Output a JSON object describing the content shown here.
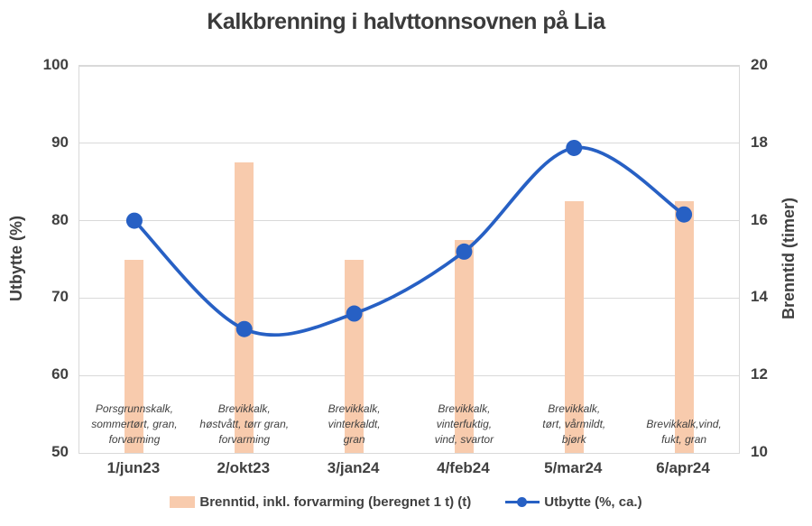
{
  "chart_data": {
    "type": "combo",
    "title": "Kalkbrenning i halvttonnsovnen på Lia",
    "categories": [
      "1/jun23",
      "2/okt23",
      "3/jan24",
      "4/feb24",
      "5/mar24",
      "6/apr24"
    ],
    "series": [
      {
        "name": "Brenntid, inkl. forvarming (beregnet 1 t) (t)",
        "type": "bar",
        "axis": "right",
        "values": [
          15,
          17.5,
          15,
          15.5,
          16.5,
          16.5
        ],
        "color": "#F8CBAD"
      },
      {
        "name": "Utbytte (%, ca.)",
        "type": "line",
        "axis": "left",
        "smooth": true,
        "values": [
          80,
          66,
          68,
          76,
          89.4,
          80.8
        ],
        "color": "#2760C4"
      }
    ],
    "annotations": [
      "Porsgrunnskalk,\nsommertørt, gran,\nforvarming",
      "Brevikkalk,\nhøstvått, tørr gran,\nforvarming",
      "Brevikkalk,\nvinterkaldt,\ngran",
      "Brevikkalk,\nvinterfuktig,\nvind, svartor",
      "Brevikkalk,\ntørt, vårmildt,\nbjørk",
      "Brevikkalk,vind,\nfukt, gran"
    ],
    "left_axis": {
      "label": "Utbytte (%)",
      "min": 50,
      "max": 100,
      "step": 10,
      "ticks": [
        100,
        90,
        80,
        70,
        60,
        50
      ]
    },
    "right_axis": {
      "label": "Brenntid (timer)",
      "min": 10,
      "max": 20,
      "step": 2,
      "ticks": [
        20,
        18,
        16,
        14,
        12,
        10
      ]
    },
    "grid": true,
    "grid_color": "#D9D9D9",
    "text_color": "#404040",
    "legend_position": "bottom"
  }
}
